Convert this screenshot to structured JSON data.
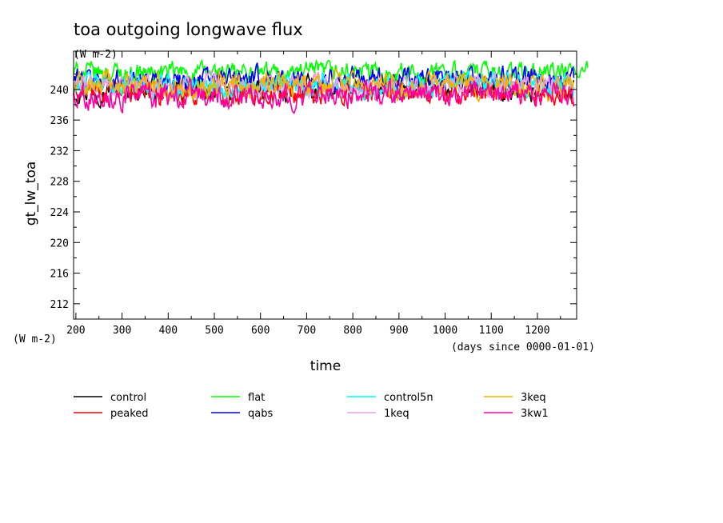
{
  "chart_data": {
    "type": "line",
    "title": "toa outgoing longwave flux",
    "title_units": "(W m-2)",
    "ylabel": "gt_lw_toa",
    "y_units": "(W m-2)",
    "xlabel": "time",
    "x_units": "(days since 0000-01-01)",
    "xlim": [
      195,
      1285
    ],
    "ylim": [
      210,
      245
    ],
    "xticks": [
      200,
      300,
      400,
      500,
      600,
      700,
      800,
      900,
      1000,
      1100,
      1200
    ],
    "yticks": [
      212,
      216,
      220,
      224,
      228,
      232,
      236,
      240
    ],
    "legend_position": "bottom",
    "series": [
      {
        "name": "control",
        "color": "#000000",
        "mean": 240.0,
        "amp": 0.9,
        "x_end": 1280
      },
      {
        "name": "peaked",
        "color": "#ff0000",
        "mean": 239.6,
        "amp": 0.9,
        "x_end": 1280
      },
      {
        "name": "flat",
        "color": "#00ff00",
        "mean": 242.2,
        "amp": 0.8,
        "x_end": 1310
      },
      {
        "name": "qabs",
        "color": "#0000ff",
        "mean": 241.3,
        "amp": 0.9,
        "x_end": 1280
      },
      {
        "name": "control5n",
        "color": "#00ffff",
        "mean": 240.6,
        "amp": 0.9,
        "x_end": 1280
      },
      {
        "name": "1keq",
        "color": "#e6a0e6",
        "mean": 240.4,
        "amp": 0.9,
        "x_end": 1280
      },
      {
        "name": "3keq",
        "color": "#f0b400",
        "mean": 240.5,
        "amp": 1.0,
        "x_end": 1280
      },
      {
        "name": "3kw1",
        "color": "#ff00a0",
        "mean": 239.3,
        "amp": 1.0,
        "x_end": 1280
      }
    ]
  }
}
